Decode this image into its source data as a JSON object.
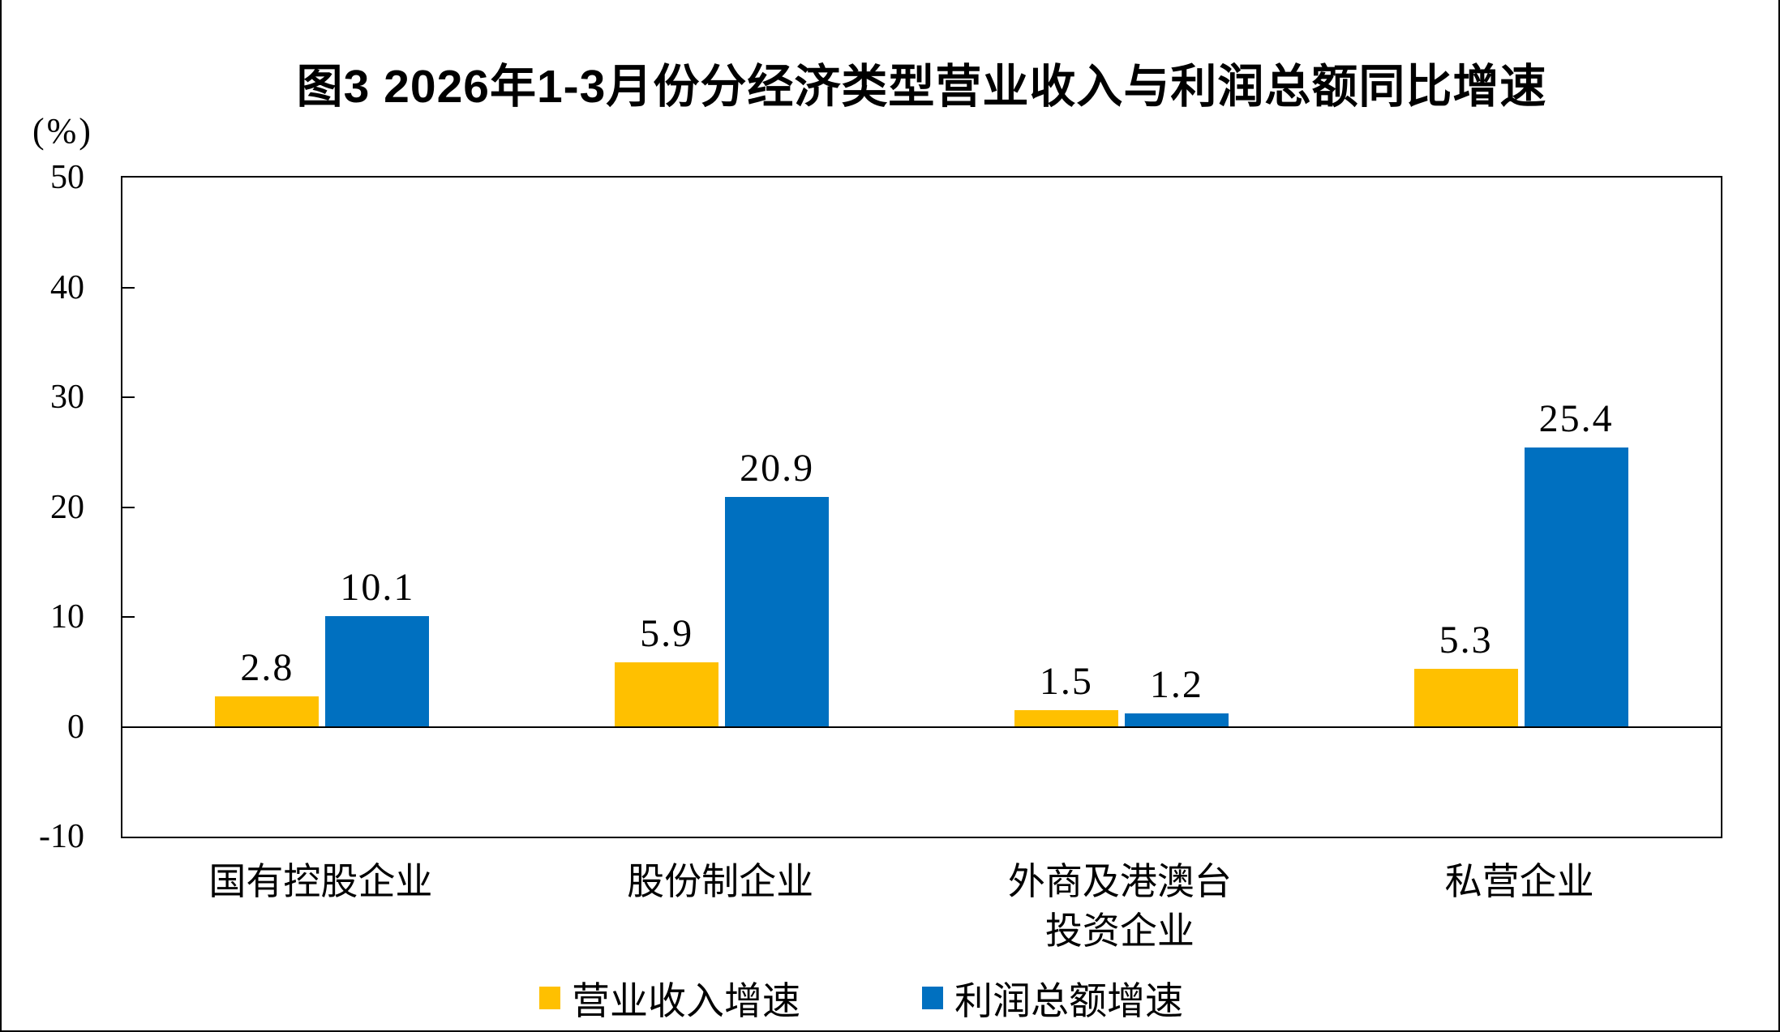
{
  "chart_data": {
    "type": "bar",
    "title": "图3  2026年1-3月份分经济类型营业收入与利润总额同比增速",
    "unit_label": "(%)",
    "categories": [
      "国有控股企业",
      "股份制企业",
      "外商及港澳台\n投资企业",
      "私营企业"
    ],
    "series": [
      {
        "name": "营业收入增速",
        "color": "#FFC000",
        "values": [
          2.8,
          5.9,
          1.5,
          5.3
        ]
      },
      {
        "name": "利润总额增速",
        "color": "#0070C0",
        "values": [
          10.1,
          20.9,
          1.2,
          25.4
        ]
      }
    ],
    "y_ticks": [
      50,
      40,
      30,
      20,
      10,
      0,
      -10
    ],
    "ylim": [
      -10,
      50
    ],
    "grid": false,
    "legend_position": "bottom",
    "axis_color": "#000000",
    "value_label_decimals": 1
  }
}
